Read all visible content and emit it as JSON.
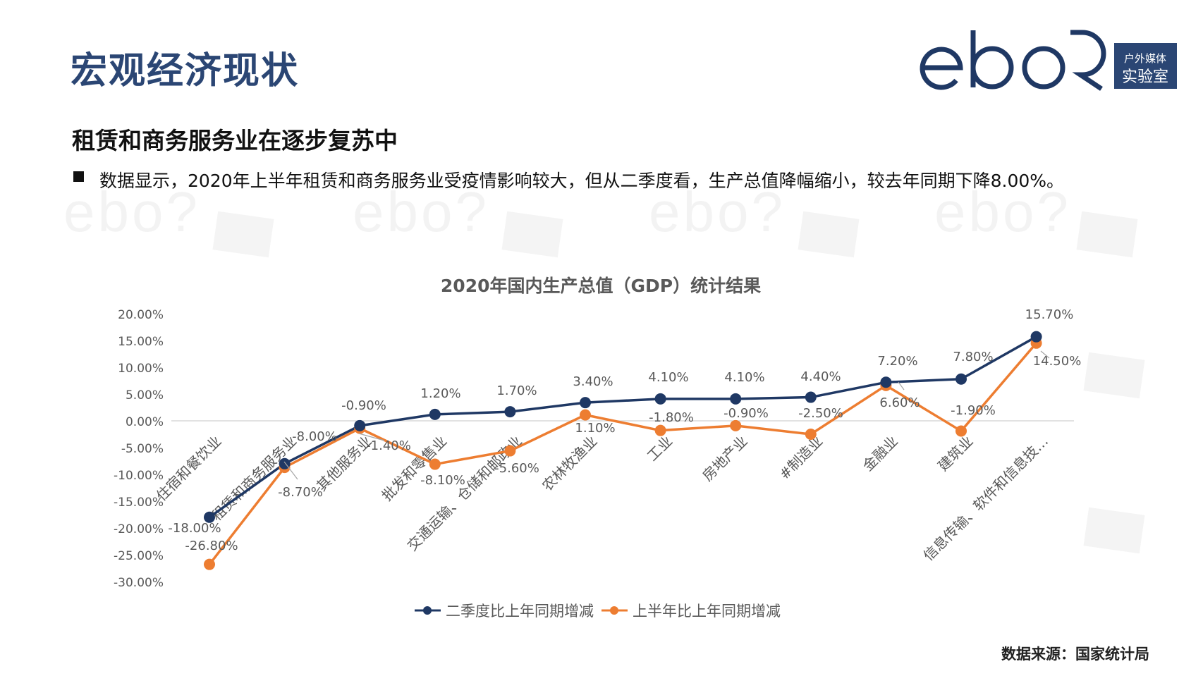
{
  "header": {
    "title": "宏观经济现状",
    "logo": {
      "wordmark": "eboR",
      "box_line1": "户外媒体",
      "box_line2": "实验室",
      "color": "#1f3864"
    }
  },
  "content": {
    "subtitle": "租赁和商务服务业在逐步复苏中",
    "bullet_text": "数据显示，2020年上半年租赁和商务服务业受疫情影响较大，但从二季度看，生产总值降幅缩小，较去年同期下降8.00%。"
  },
  "footer": {
    "source": "数据来源：国家统计局"
  },
  "colors": {
    "title": "#2b4674",
    "series_q2": "#1f3864",
    "series_h1": "#ed7d31",
    "axis_text": "#595959",
    "gridline": "#d9d9d9"
  },
  "chart_data": {
    "type": "line",
    "title": "2020年国内生产总值（GDP）统计结果",
    "xlabel": "",
    "ylabel": "",
    "ylim": [
      -30,
      20
    ],
    "yticks": [
      "20.00%",
      "15.00%",
      "10.00%",
      "5.00%",
      "0.00%",
      "-5.00%",
      "-10.00%",
      "-15.00%",
      "-20.00%",
      "-25.00%",
      "-30.00%"
    ],
    "ytick_values": [
      20,
      15,
      10,
      5,
      0,
      -5,
      -10,
      -15,
      -20,
      -25,
      -30
    ],
    "grid": false,
    "zero_line": true,
    "legend_position": "bottom",
    "categories": [
      "住宿和餐饮业",
      "租赁和商务服务业",
      "其他服务业",
      "批发和零售业",
      "交通运输、仓储和邮政业",
      "农林牧渔业",
      "工业",
      "房地产业",
      "#制造业",
      "金融业",
      "建筑业",
      "信息传输、软件和信息技…"
    ],
    "series": [
      {
        "name": "二季度比上年同期增减",
        "color": "#1f3864",
        "values": [
          -18.0,
          -8.0,
          -0.9,
          1.2,
          1.7,
          3.4,
          4.1,
          4.1,
          4.4,
          7.2,
          7.8,
          15.7
        ],
        "labels": [
          "-18.00%",
          "-8.00%",
          "-0.90%",
          "1.20%",
          "1.70%",
          "3.40%",
          "4.10%",
          "4.10%",
          "4.40%",
          "7.20%",
          "7.80%",
          "15.70%"
        ]
      },
      {
        "name": "上半年比上年同期增减",
        "color": "#ed7d31",
        "values": [
          -26.8,
          -8.7,
          -1.4,
          -8.1,
          -5.6,
          1.1,
          -1.8,
          -0.9,
          -2.5,
          6.6,
          -1.9,
          14.5
        ],
        "labels": [
          "-26.80%",
          "-8.70%",
          "-1.40%",
          "-8.10%",
          "-5.60%",
          "1.10%",
          "-1.80%",
          "-0.90%",
          "-2.50%",
          "6.60%",
          "-1.90%",
          "14.50%"
        ]
      }
    ]
  }
}
